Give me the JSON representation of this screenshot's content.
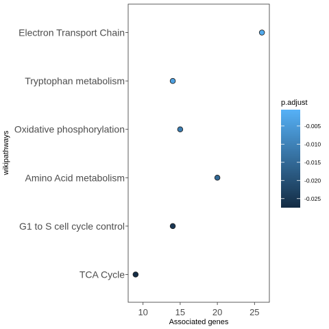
{
  "chart_data": {
    "type": "scatter",
    "title": "",
    "xlabel": "Associated genes",
    "ylabel": "wikipathways",
    "xlim": [
      8,
      27
    ],
    "x_ticks": [
      10,
      15,
      20,
      25
    ],
    "grid": false,
    "categories": [
      "TCA Cycle",
      "G1 to S cell cycle control",
      "Amino Acid metabolism",
      "Oxidative phosphorylation",
      "Tryptophan metabolism",
      "Electron Transport Chain"
    ],
    "points": [
      {
        "category": "TCA Cycle",
        "x": 9,
        "p_adjust": -0.027
      },
      {
        "category": "G1 to S cell cycle control",
        "x": 14,
        "p_adjust": -0.025
      },
      {
        "category": "Amino Acid metabolism",
        "x": 20,
        "p_adjust": -0.015
      },
      {
        "category": "Oxidative phosphorylation",
        "x": 15,
        "p_adjust": -0.011
      },
      {
        "category": "Tryptophan metabolism",
        "x": 14,
        "p_adjust": -0.004
      },
      {
        "category": "Electron Transport Chain",
        "x": 26,
        "p_adjust": -0.002
      }
    ],
    "legend": {
      "title": "p.adjust",
      "placement": "right",
      "range": [
        -0.0275,
        -0.0005
      ],
      "ticks": [
        -0.005,
        -0.01,
        -0.015,
        -0.02,
        -0.025
      ],
      "tick_labels": [
        "-0.005",
        "-0.010",
        "-0.015",
        "-0.020",
        "-0.025"
      ],
      "color_low": "#132B43",
      "color_high": "#56B1F7"
    }
  }
}
